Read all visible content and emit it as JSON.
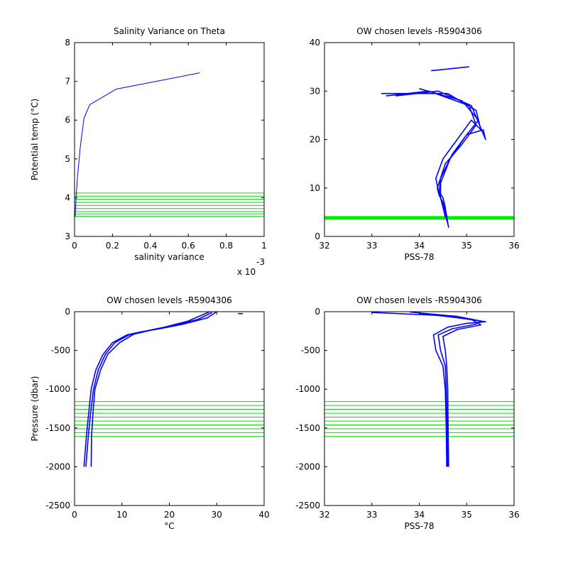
{
  "chart_data": [
    {
      "type": "line",
      "title": "Salinity Variance on Theta",
      "xlabel": "salinity variance",
      "x_exponent_base": "x 10",
      "x_exponent_power": "-3",
      "ylabel": "Potential temp (°C)",
      "xlim": [
        0,
        1
      ],
      "ylim": [
        3,
        8
      ],
      "xticks": [
        0,
        0.2,
        0.4,
        0.6,
        0.8,
        1
      ],
      "xtick_labels": [
        "0",
        "0.2",
        "0.4",
        "0.6",
        "0.8",
        "1"
      ],
      "yticks": [
        3,
        4,
        5,
        6,
        7,
        8
      ],
      "ytick_labels": [
        "3",
        "4",
        "5",
        "6",
        "7",
        "8"
      ],
      "grid": false,
      "colors": {
        "profiles": "#0000ff",
        "levels": "#00dd00"
      },
      "series": [
        {
          "x": [
            0.003,
            0.008,
            0.015,
            0.03,
            0.05,
            0.08,
            0.22,
            0.66
          ],
          "y": [
            3.5,
            4.0,
            4.5,
            5.3,
            6.05,
            6.4,
            6.8,
            7.22
          ]
        }
      ],
      "levels": [
        3.52,
        3.58,
        3.64,
        3.72,
        3.8,
        3.88,
        3.96,
        4.04,
        4.12
      ]
    },
    {
      "type": "line",
      "title": "OW chosen levels -R5904306",
      "xlabel": "PSS-78",
      "ylabel": "",
      "xlim": [
        32,
        36
      ],
      "ylim": [
        0,
        40
      ],
      "xticks": [
        32,
        33,
        34,
        35,
        36
      ],
      "xtick_labels": [
        "32",
        "33",
        "34",
        "35",
        "36"
      ],
      "yticks": [
        0,
        10,
        20,
        30,
        40
      ],
      "ytick_labels": [
        "0",
        "10",
        "20",
        "30",
        "40"
      ],
      "grid": false,
      "colors": {
        "profiles": "#0000ff",
        "levels": "#00ee00"
      },
      "series": [
        {
          "x": [
            34.62,
            34.58,
            34.55,
            34.5,
            34.4,
            34.35,
            34.5,
            34.8,
            35.1,
            35.3,
            35.2,
            34.6,
            33.8,
            33.2
          ],
          "y": [
            1.8,
            4.0,
            6.0,
            8.0,
            9.5,
            12,
            16,
            20,
            24,
            22,
            26,
            29.5,
            29.5,
            29.5
          ]
        },
        {
          "x": [
            34.6,
            34.58,
            34.52,
            34.45,
            34.42,
            34.45,
            34.7,
            35.0,
            35.35,
            35.4,
            35.1,
            34.4,
            33.5
          ],
          "y": [
            2.5,
            4.2,
            6.5,
            8.0,
            9.0,
            12,
            17,
            21,
            22,
            20,
            27,
            30,
            29
          ]
        },
        {
          "x": [
            34.58,
            34.55,
            34.5,
            34.42,
            34.38,
            34.55,
            34.9,
            35.2,
            35.05,
            34.2,
            33.3
          ],
          "y": [
            3.2,
            5.0,
            7.0,
            8.5,
            10,
            15,
            19,
            23,
            27,
            30,
            29
          ]
        },
        {
          "x": [
            34.55,
            34.5,
            34.45,
            34.45,
            34.65,
            35.0,
            35.25,
            34.9,
            34.0
          ],
          "y": [
            4.0,
            6.0,
            8.0,
            11,
            16,
            21,
            24,
            28,
            30.5
          ]
        },
        {
          "x": [
            34.25,
            35.05
          ],
          "y": [
            34.2,
            35.0
          ]
        }
      ],
      "level_band": [
        3.5,
        4.2
      ]
    },
    {
      "type": "line",
      "title": "OW chosen levels -R5904306",
      "xlabel": "°C",
      "ylabel": "Pressure (dbar)",
      "xlim": [
        0,
        40
      ],
      "ylim": [
        -2500,
        0
      ],
      "xticks": [
        0,
        10,
        20,
        30,
        40
      ],
      "xtick_labels": [
        "0",
        "10",
        "20",
        "30",
        "40"
      ],
      "yticks": [
        -2500,
        -2000,
        -1500,
        -1000,
        -500,
        0
      ],
      "ytick_labels": [
        "-2500",
        "-2000",
        "-1500",
        "-1000",
        "-500",
        "0"
      ],
      "grid": false,
      "colors": {
        "profiles": "#0000ff",
        "levels": "#00dd00"
      },
      "series": [
        {
          "x": [
            2.0,
            2.5,
            3.0,
            3.5,
            4.5,
            6,
            8,
            11,
            14,
            18,
            23,
            28,
            30
          ],
          "y": [
            -2000,
            -1600,
            -1300,
            -1000,
            -750,
            -550,
            -400,
            -300,
            -260,
            -220,
            -160,
            -80,
            0
          ]
        },
        {
          "x": [
            2.4,
            2.9,
            3.4,
            4.0,
            5.0,
            6.5,
            8.5,
            11.5,
            15,
            19,
            24,
            28.5
          ],
          "y": [
            -2000,
            -1600,
            -1300,
            -1000,
            -750,
            -550,
            -400,
            -300,
            -250,
            -200,
            -120,
            0
          ]
        },
        {
          "x": [
            3.5,
            3.6,
            3.9,
            4.3,
            5.5,
            7,
            9.5,
            12.5,
            16,
            21,
            26,
            29
          ],
          "y": [
            -2000,
            -1600,
            -1300,
            -1000,
            -750,
            -550,
            -400,
            -290,
            -240,
            -180,
            -100,
            -10
          ]
        },
        {
          "x": [
            34.5,
            35.5
          ],
          "y": [
            -25,
            -25
          ]
        }
      ],
      "levels": [
        -1160,
        -1210,
        -1260,
        -1310,
        -1360,
        -1410,
        -1460,
        -1510,
        -1560,
        -1610
      ]
    },
    {
      "type": "line",
      "title": "OW chosen levels -R5904306",
      "xlabel": "PSS-78",
      "ylabel": "",
      "xlim": [
        32,
        36
      ],
      "ylim": [
        -2500,
        0
      ],
      "xticks": [
        32,
        33,
        34,
        35,
        36
      ],
      "xtick_labels": [
        "32",
        "33",
        "34",
        "35",
        "36"
      ],
      "yticks": [
        -2500,
        -2000,
        -1500,
        -1000,
        -500,
        0
      ],
      "ytick_labels": [
        "-2500",
        "-2000",
        "-1500",
        "-1000",
        "-500",
        "0"
      ],
      "grid": false,
      "colors": {
        "profiles": "#0000ff",
        "levels": "#00dd00"
      },
      "series": [
        {
          "x": [
            34.58,
            34.57,
            34.55,
            34.5,
            34.35,
            34.3,
            34.6,
            35.0,
            35.4,
            34.5,
            33.0
          ],
          "y": [
            -2000,
            -1500,
            -1000,
            -700,
            -500,
            -300,
            -200,
            -150,
            -130,
            -50,
            -10
          ]
        },
        {
          "x": [
            34.6,
            34.59,
            34.57,
            34.55,
            34.45,
            34.4,
            34.7,
            35.2,
            35.3,
            34.8,
            33.8
          ],
          "y": [
            -2000,
            -1500,
            -1000,
            -700,
            -500,
            -300,
            -220,
            -160,
            -120,
            -60,
            -5
          ]
        },
        {
          "x": [
            34.62,
            34.61,
            34.6,
            34.58,
            34.55,
            34.5,
            34.8,
            35.3,
            35.1,
            34.0
          ],
          "y": [
            -2000,
            -1500,
            -1000,
            -700,
            -500,
            -320,
            -230,
            -170,
            -100,
            -20
          ]
        }
      ],
      "levels": [
        -1160,
        -1210,
        -1260,
        -1310,
        -1360,
        -1410,
        -1460,
        -1510,
        -1560,
        -1610
      ]
    }
  ]
}
